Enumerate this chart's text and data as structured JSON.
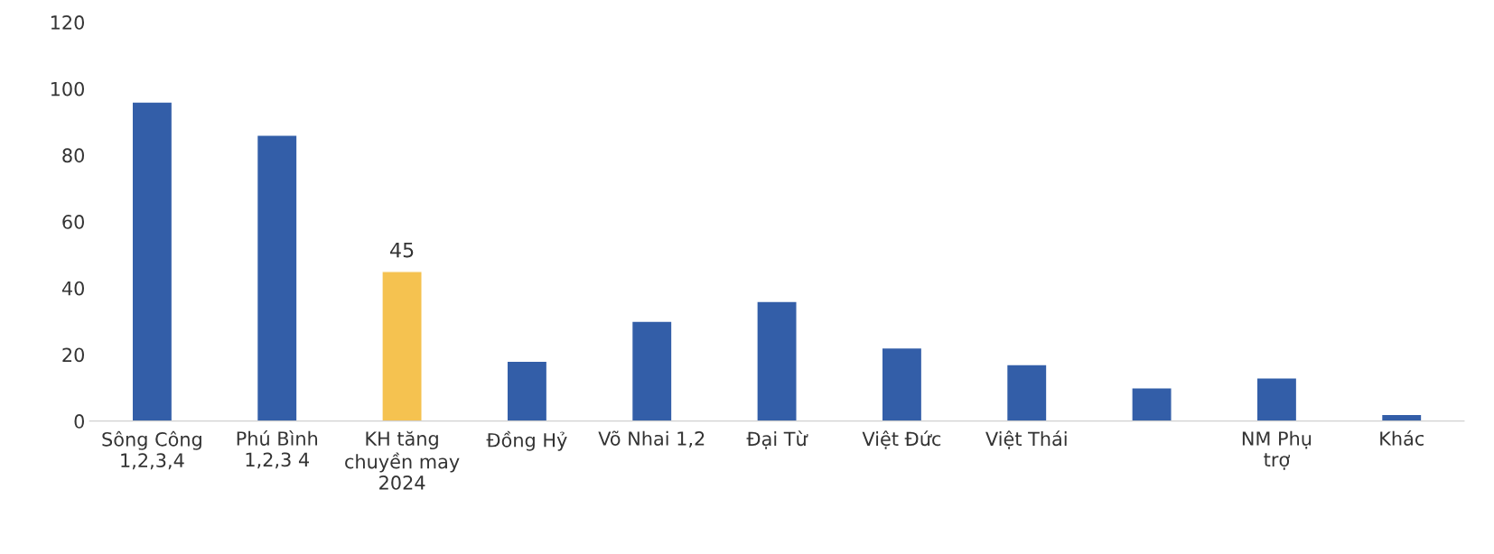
{
  "chart_data": {
    "type": "bar",
    "categories": [
      "Sông Công\n1,2,3,4",
      "Phú Bình\n1,2,3 4",
      "KH tăng\nchuyền may\n2024",
      "Đồng Hỷ",
      "Võ Nhai 1,2",
      "Đại Từ",
      "Việt Đức",
      "Việt Thái",
      null,
      "NM Phụ\ntrợ",
      "Khác"
    ],
    "values": [
      96,
      86,
      45,
      18,
      30,
      36,
      22,
      17,
      10,
      13,
      2
    ],
    "colors": [
      "#335ea8",
      "#335ea8",
      "#f5c250",
      "#335ea8",
      "#335ea8",
      "#335ea8",
      "#335ea8",
      "#335ea8",
      "#335ea8",
      "#335ea8",
      "#335ea8"
    ],
    "value_labels": [
      null,
      null,
      "45",
      null,
      null,
      null,
      null,
      null,
      null,
      null,
      null
    ],
    "ylim": [
      0,
      120
    ],
    "yticks": [
      0,
      20,
      40,
      60,
      80,
      100,
      120
    ],
    "grid": false,
    "legend": false
  }
}
